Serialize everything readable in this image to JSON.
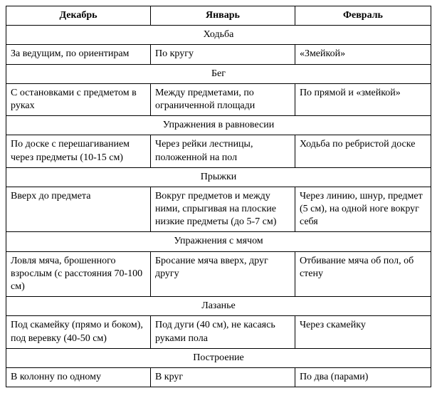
{
  "headers": {
    "col1": "Декабрь",
    "col2": "Январь",
    "col3": "Февраль"
  },
  "sections": [
    {
      "title": "Ходьба",
      "row": {
        "c1": "За ведущим, по ориен­тирам",
        "c2": "По кругу",
        "c3": "«Змейкой»"
      }
    },
    {
      "title": "Бег",
      "row": {
        "c1": "С остановками с пред­метом в руках",
        "c2": "Между предметами, по ограниченной площади",
        "c3": "По прямой и «змейкой»"
      }
    },
    {
      "title": "Упражнения в равновесии",
      "row": {
        "c1": "По доске с перешаги­ванием через предметы (10-15 см)",
        "c2": "Через рейки лестницы, положенной на пол",
        "c3": "Ходьба по ребристой доске"
      }
    },
    {
      "title": "Прыжки",
      "row": {
        "c1": "Вверх до предмета",
        "c2": "Вокруг предметов и между ними, спрыгивая на плоские низкие предметы (до 5-7 см)",
        "c3": "Через линию, шнур, предмет (5 см), на од­ной ноге вокруг себя"
      }
    },
    {
      "title": "Упражнения с мячом",
      "row": {
        "c1": "Ловля мяча, брошенно­го взрослым (с расстоя­ния 70-100 см)",
        "c2": "Бросание мяча вверх, друг другу",
        "c3": "Отбивание мяча об пол, об стену"
      }
    },
    {
      "title": "Лазанье",
      "row": {
        "c1": "Под скамейку (прямо и боком), под веревку (40-50 см)",
        "c2": "Под дуги (40 см), не ка­саясь руками пола",
        "c3": "Через скамейку"
      }
    },
    {
      "title": "Построение",
      "row": {
        "c1": "В колонну по одному",
        "c2": "В круг",
        "c3": "По два (парами)"
      }
    }
  ]
}
